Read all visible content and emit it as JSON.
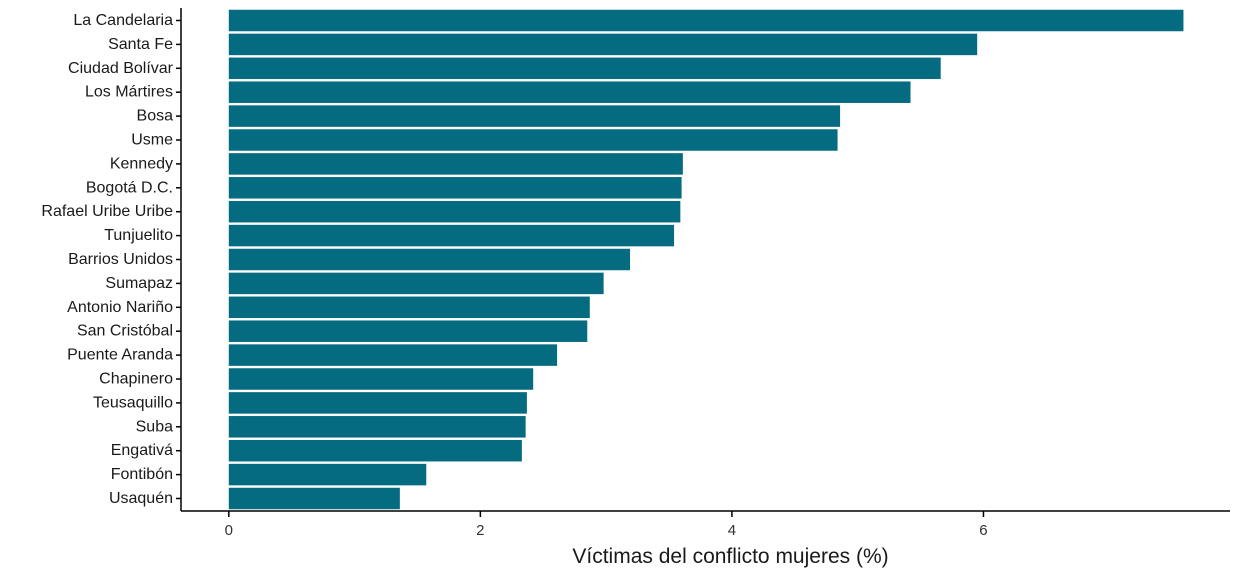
{
  "chart_data": {
    "type": "bar",
    "orientation": "horizontal",
    "categories": [
      "La Candelaria",
      "Santa Fe",
      "Ciudad Bolívar",
      "Los Mártires",
      "Bosa",
      "Usme",
      "Kennedy",
      "Bogotá D.C.",
      "Rafael Uribe Uribe",
      "Tunjuelito",
      "Barrios Unidos",
      "Sumapaz",
      "Antonio Nariño",
      "San Cristóbal",
      "Puente Aranda",
      "Chapinero",
      "Teusaquillo",
      "Suba",
      "Engativá",
      "Fontibón",
      "Usaquén"
    ],
    "values": [
      7.59,
      5.95,
      5.66,
      5.42,
      4.86,
      4.84,
      3.61,
      3.6,
      3.59,
      3.54,
      3.19,
      2.98,
      2.87,
      2.85,
      2.61,
      2.42,
      2.37,
      2.36,
      2.33,
      1.57,
      1.36
    ],
    "xlabel": "Víctimas del conflicto mujeres (%)",
    "ylabel": "",
    "xlim": [
      -0.38,
      7.96
    ],
    "xticks": [
      0,
      2,
      4,
      6
    ],
    "xtick_labels": [
      "0",
      "2",
      "4",
      "6"
    ],
    "grid": false,
    "bar_color": "#046b80"
  }
}
